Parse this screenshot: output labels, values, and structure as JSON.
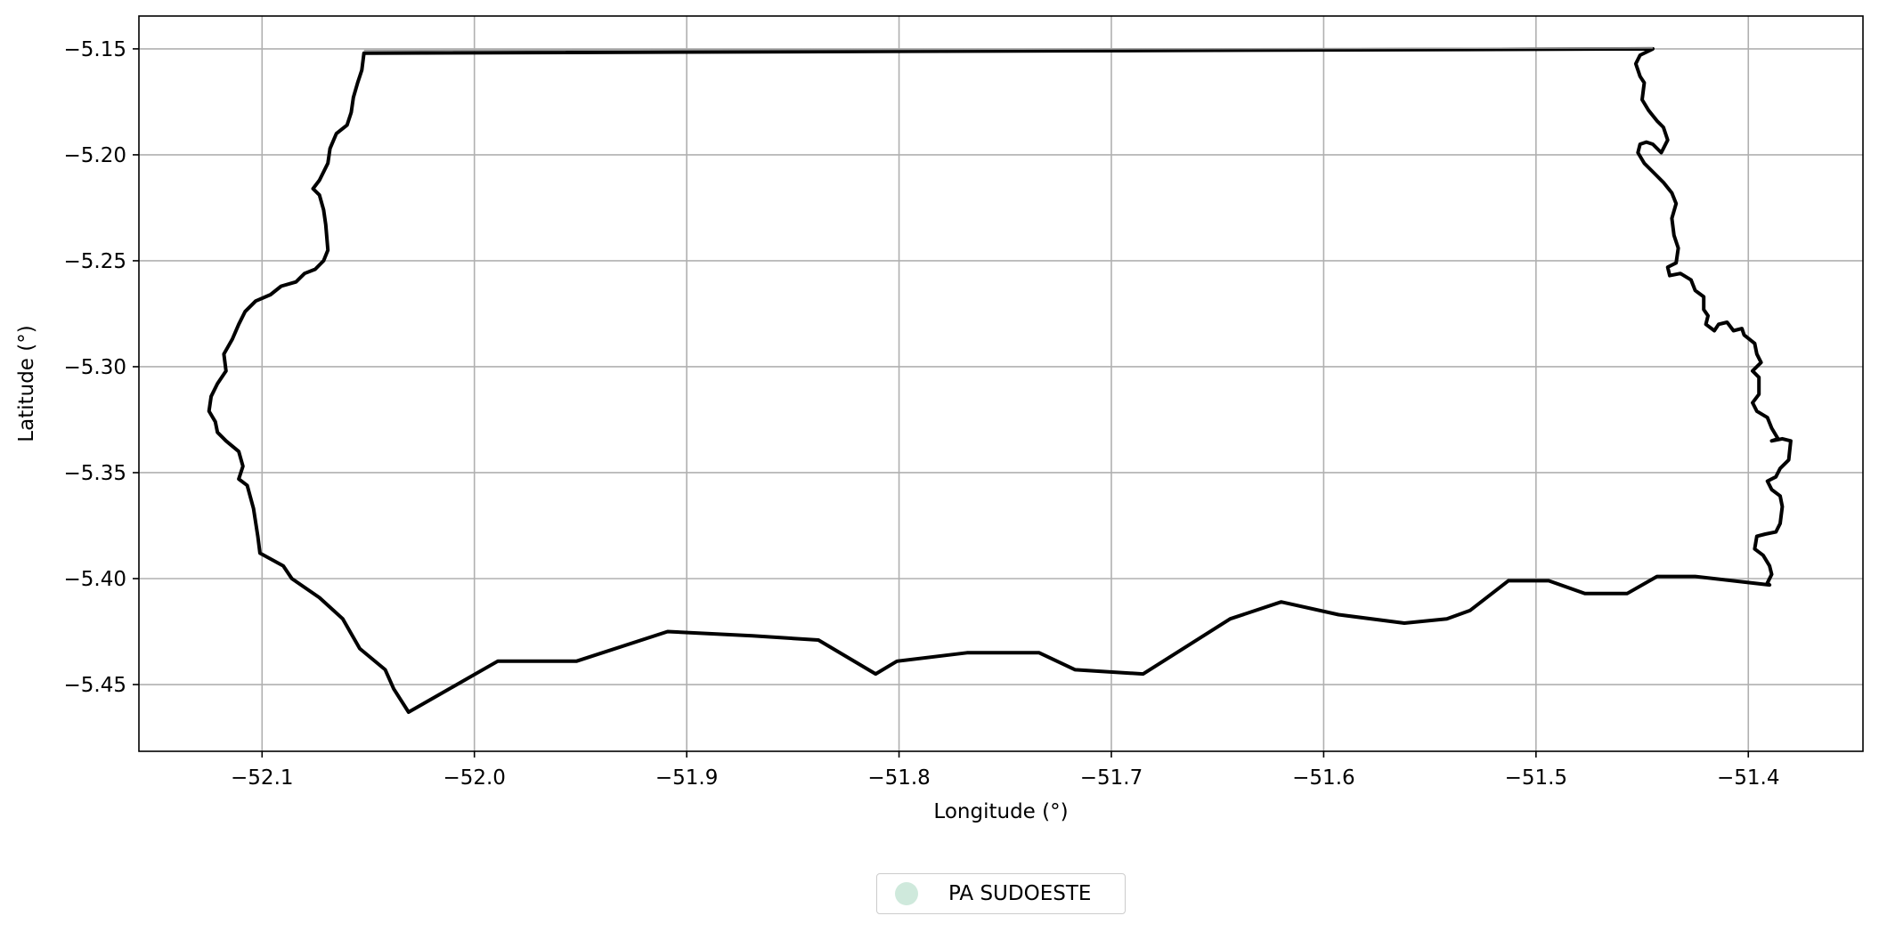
{
  "chart_data": {
    "type": "map",
    "title": "",
    "xlabel": "Longitude (°)",
    "ylabel": "Latitude (°)",
    "xlim": [
      -52.158,
      -51.346
    ],
    "ylim": [
      -5.4815,
      -5.1345
    ],
    "xticks": [
      -52.1,
      -52.0,
      -51.9,
      -51.8,
      -51.7,
      -51.6,
      -51.5,
      -51.4
    ],
    "xtick_labels": [
      "−52.1",
      "−52.0",
      "−51.9",
      "−51.8",
      "−51.7",
      "−51.6",
      "−51.5",
      "−51.4"
    ],
    "yticks": [
      -5.15,
      -5.2,
      -5.25,
      -5.3,
      -5.35,
      -5.4,
      -5.45
    ],
    "ytick_labels": [
      "−5.15",
      "−5.20",
      "−5.25",
      "−5.30",
      "−5.35",
      "−5.40",
      "−5.45"
    ],
    "grid": true,
    "legend": {
      "placement": "below",
      "entries": [
        {
          "label": "PA SUDOESTE",
          "color": "#cfe9dc"
        }
      ]
    },
    "boundary_color": "#000000",
    "grid_color": "#b0b0b0",
    "boundary": [
      [
        -52.052,
        -5.152
      ],
      [
        -51.445,
        -5.15
      ],
      [
        -51.451,
        -5.153
      ],
      [
        -51.453,
        -5.157
      ],
      [
        -51.451,
        -5.163
      ],
      [
        -51.449,
        -5.166
      ],
      [
        -51.45,
        -5.174
      ],
      [
        -51.447,
        -5.179
      ],
      [
        -51.443,
        -5.184
      ],
      [
        -51.44,
        -5.187
      ],
      [
        -51.438,
        -5.193
      ],
      [
        -51.441,
        -5.199
      ],
      [
        -51.445,
        -5.195
      ],
      [
        -51.448,
        -5.194
      ],
      [
        -51.451,
        -5.195
      ],
      [
        -51.452,
        -5.199
      ],
      [
        -51.449,
        -5.204
      ],
      [
        -51.445,
        -5.208
      ],
      [
        -51.44,
        -5.213
      ],
      [
        -51.436,
        -5.218
      ],
      [
        -51.434,
        -5.223
      ],
      [
        -51.436,
        -5.23
      ],
      [
        -51.435,
        -5.238
      ],
      [
        -51.433,
        -5.244
      ],
      [
        -51.434,
        -5.251
      ],
      [
        -51.438,
        -5.253
      ],
      [
        -51.437,
        -5.257
      ],
      [
        -51.432,
        -5.256
      ],
      [
        -51.427,
        -5.259
      ],
      [
        -51.425,
        -5.264
      ],
      [
        -51.421,
        -5.267
      ],
      [
        -51.421,
        -5.273
      ],
      [
        -51.419,
        -5.276
      ],
      [
        -51.42,
        -5.28
      ],
      [
        -51.416,
        -5.283
      ],
      [
        -51.414,
        -5.28
      ],
      [
        -51.41,
        -5.279
      ],
      [
        -51.407,
        -5.283
      ],
      [
        -51.403,
        -5.282
      ],
      [
        -51.402,
        -5.285
      ],
      [
        -51.397,
        -5.289
      ],
      [
        -51.396,
        -5.294
      ],
      [
        -51.394,
        -5.298
      ],
      [
        -51.398,
        -5.302
      ],
      [
        -51.395,
        -5.305
      ],
      [
        -51.395,
        -5.313
      ],
      [
        -51.398,
        -5.317
      ],
      [
        -51.396,
        -5.321
      ],
      [
        -51.391,
        -5.324
      ],
      [
        -51.389,
        -5.329
      ],
      [
        -51.386,
        -5.334
      ],
      [
        -51.389,
        -5.335
      ],
      [
        -51.384,
        -5.334
      ],
      [
        -51.38,
        -5.335
      ],
      [
        -51.381,
        -5.344
      ],
      [
        -51.385,
        -5.348
      ],
      [
        -51.387,
        -5.352
      ],
      [
        -51.391,
        -5.354
      ],
      [
        -51.389,
        -5.358
      ],
      [
        -51.385,
        -5.361
      ],
      [
        -51.384,
        -5.366
      ],
      [
        -51.385,
        -5.374
      ],
      [
        -51.387,
        -5.378
      ],
      [
        -51.392,
        -5.379
      ],
      [
        -51.396,
        -5.38
      ],
      [
        -51.397,
        -5.386
      ],
      [
        -51.393,
        -5.389
      ],
      [
        -51.39,
        -5.394
      ],
      [
        -51.389,
        -5.398
      ],
      [
        -51.391,
        -5.402
      ],
      [
        -51.39,
        -5.403
      ],
      [
        -51.425,
        -5.399
      ],
      [
        -51.443,
        -5.399
      ],
      [
        -51.457,
        -5.407
      ],
      [
        -51.477,
        -5.407
      ],
      [
        -51.494,
        -5.401
      ],
      [
        -51.513,
        -5.401
      ],
      [
        -51.531,
        -5.415
      ],
      [
        -51.542,
        -5.419
      ],
      [
        -51.562,
        -5.421
      ],
      [
        -51.593,
        -5.417
      ],
      [
        -51.62,
        -5.411
      ],
      [
        -51.644,
        -5.419
      ],
      [
        -51.685,
        -5.445
      ],
      [
        -51.717,
        -5.443
      ],
      [
        -51.734,
        -5.435
      ],
      [
        -51.768,
        -5.435
      ],
      [
        -51.801,
        -5.439
      ],
      [
        -51.811,
        -5.445
      ],
      [
        -51.838,
        -5.429
      ],
      [
        -51.869,
        -5.427
      ],
      [
        -51.909,
        -5.425
      ],
      [
        -51.952,
        -5.439
      ],
      [
        -51.989,
        -5.439
      ],
      [
        -52.031,
        -5.463
      ],
      [
        -52.038,
        -5.452
      ],
      [
        -52.042,
        -5.443
      ],
      [
        -52.054,
        -5.433
      ],
      [
        -52.058,
        -5.426
      ],
      [
        -52.062,
        -5.419
      ],
      [
        -52.073,
        -5.409
      ],
      [
        -52.086,
        -5.4
      ],
      [
        -52.09,
        -5.394
      ],
      [
        -52.101,
        -5.388
      ],
      [
        -52.102,
        -5.38
      ],
      [
        -52.104,
        -5.367
      ],
      [
        -52.107,
        -5.356
      ],
      [
        -52.111,
        -5.353
      ],
      [
        -52.109,
        -5.347
      ],
      [
        -52.111,
        -5.34
      ],
      [
        -52.117,
        -5.335
      ],
      [
        -52.121,
        -5.331
      ],
      [
        -52.122,
        -5.326
      ],
      [
        -52.125,
        -5.321
      ],
      [
        -52.124,
        -5.314
      ],
      [
        -52.121,
        -5.308
      ],
      [
        -52.117,
        -5.302
      ],
      [
        -52.118,
        -5.294
      ],
      [
        -52.114,
        -5.287
      ],
      [
        -52.111,
        -5.28
      ],
      [
        -52.108,
        -5.274
      ],
      [
        -52.103,
        -5.269
      ],
      [
        -52.096,
        -5.266
      ],
      [
        -52.091,
        -5.262
      ],
      [
        -52.084,
        -5.26
      ],
      [
        -52.08,
        -5.256
      ],
      [
        -52.075,
        -5.254
      ],
      [
        -52.071,
        -5.25
      ],
      [
        -52.069,
        -5.245
      ],
      [
        -52.07,
        -5.233
      ],
      [
        -52.071,
        -5.226
      ],
      [
        -52.073,
        -5.219
      ],
      [
        -52.076,
        -5.216
      ],
      [
        -52.073,
        -5.212
      ],
      [
        -52.069,
        -5.204
      ],
      [
        -52.068,
        -5.197
      ],
      [
        -52.065,
        -5.19
      ],
      [
        -52.06,
        -5.186
      ],
      [
        -52.058,
        -5.18
      ],
      [
        -52.057,
        -5.173
      ],
      [
        -52.055,
        -5.166
      ],
      [
        -52.053,
        -5.16
      ],
      [
        -52.052,
        -5.152
      ]
    ]
  }
}
